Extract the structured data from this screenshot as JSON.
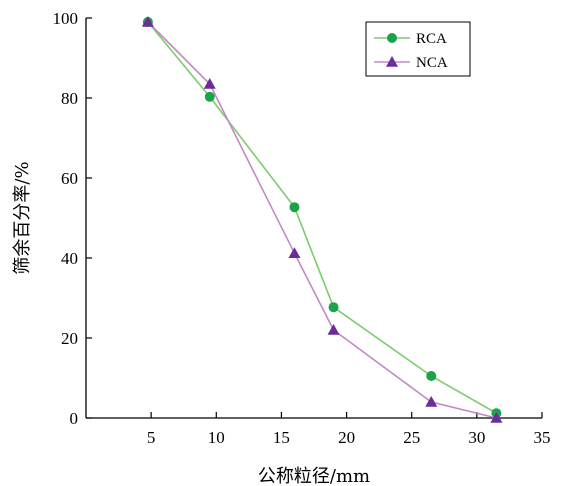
{
  "chart_data": {
    "type": "line",
    "title": "",
    "xlabel": "公称粒径/mm",
    "ylabel": "筛余百分率/%",
    "xlim": [
      0,
      35
    ],
    "ylim": [
      0,
      100
    ],
    "xticks": [
      5,
      10,
      15,
      20,
      25,
      30,
      35
    ],
    "yticks": [
      0,
      20,
      40,
      60,
      80,
      100
    ],
    "grid": false,
    "legend_position": "top-right",
    "series": [
      {
        "name": "RCA",
        "marker": "circle",
        "color": "#1aa34a",
        "line_color": "#7ccc6e",
        "x": [
          4.75,
          9.5,
          16,
          19,
          26.5,
          31.5
        ],
        "y": [
          99,
          80.3,
          52.7,
          27.7,
          10.5,
          1.2
        ]
      },
      {
        "name": "NCA",
        "marker": "triangle",
        "color": "#6a2d9a",
        "line_color": "#c687c7",
        "x": [
          4.75,
          9.5,
          16,
          19,
          26.5,
          31.5
        ],
        "y": [
          99,
          83.5,
          41.2,
          22,
          4,
          0
        ]
      }
    ]
  }
}
